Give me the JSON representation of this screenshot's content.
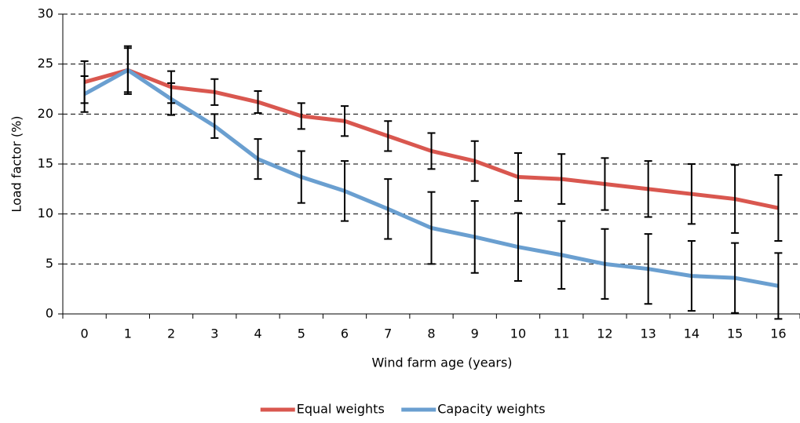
{
  "chart_data": {
    "type": "line",
    "x_label": "Wind farm age (years)",
    "y_label": "Load factor (%)",
    "categories": [
      "0",
      "1",
      "2",
      "3",
      "4",
      "5",
      "6",
      "7",
      "8",
      "9",
      "10",
      "11",
      "12",
      "13",
      "14",
      "15",
      "16"
    ],
    "series": [
      {
        "name": "Equal weights",
        "color": "#d9574f",
        "values": [
          23.2,
          24.4,
          22.7,
          22.2,
          21.2,
          19.8,
          19.3,
          17.8,
          16.3,
          15.3,
          13.7,
          13.5,
          13.0,
          12.5,
          12.0,
          11.5,
          10.6
        ],
        "errors": [
          2.1,
          2.4,
          1.6,
          1.3,
          1.1,
          1.3,
          1.5,
          1.5,
          1.8,
          2.0,
          2.4,
          2.5,
          2.6,
          2.8,
          3.0,
          3.4,
          3.3
        ]
      },
      {
        "name": "Capacity weights",
        "color": "#6a9fd0",
        "values": [
          22.0,
          24.4,
          21.5,
          18.8,
          15.5,
          13.7,
          12.3,
          10.5,
          8.6,
          7.7,
          6.7,
          5.9,
          5.0,
          4.5,
          3.8,
          3.6,
          2.8
        ],
        "errors": [
          1.8,
          2.2,
          1.6,
          1.2,
          2.0,
          2.6,
          3.0,
          3.0,
          3.6,
          3.6,
          3.4,
          3.4,
          3.5,
          3.5,
          3.5,
          3.5,
          3.3
        ]
      }
    ],
    "ylim": [
      0,
      30
    ],
    "yticks": [
      0,
      5,
      10,
      15,
      20,
      25,
      30
    ],
    "grid": true,
    "legend": "bottom"
  }
}
